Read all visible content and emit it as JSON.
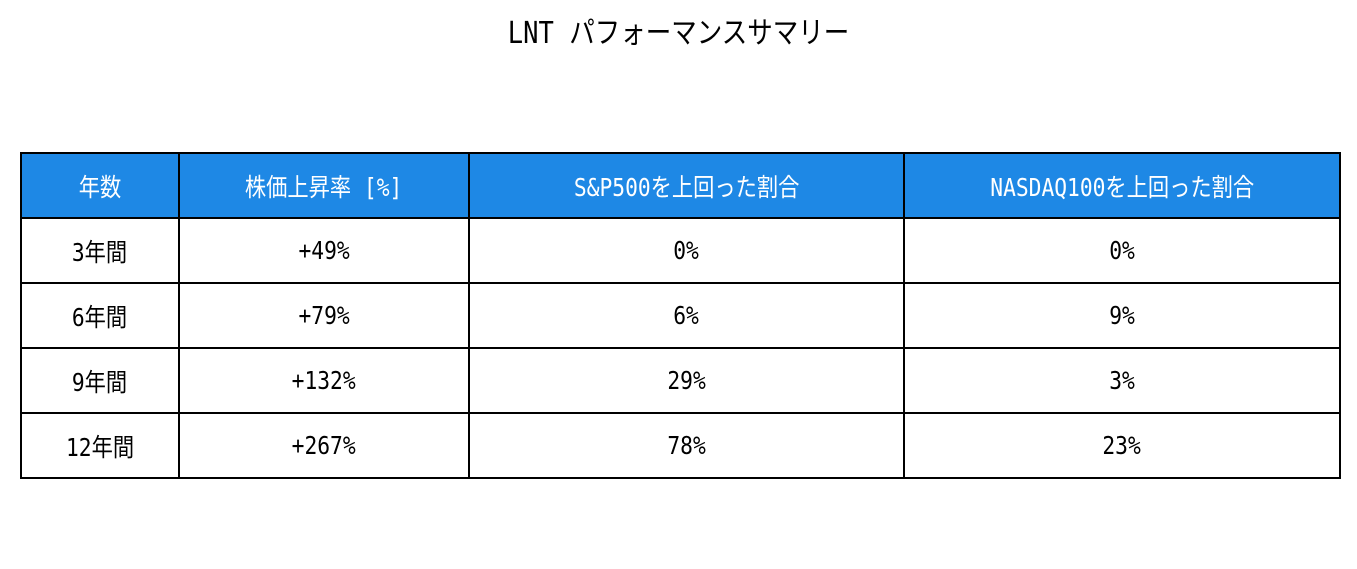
{
  "title": "LNT パフォーマンスサマリー",
  "table": {
    "header": [
      "年数",
      "株価上昇率 [%]",
      "S&P500を上回った割合",
      "NASDAQ100を上回った割合"
    ],
    "rows": [
      [
        "3年間",
        "+49%",
        "0%",
        "0%"
      ],
      [
        "6年間",
        "+79%",
        "6%",
        "9%"
      ],
      [
        "9年間",
        "+132%",
        "29%",
        "3%"
      ],
      [
        "12年間",
        "+267%",
        "78%",
        "23%"
      ]
    ]
  }
}
